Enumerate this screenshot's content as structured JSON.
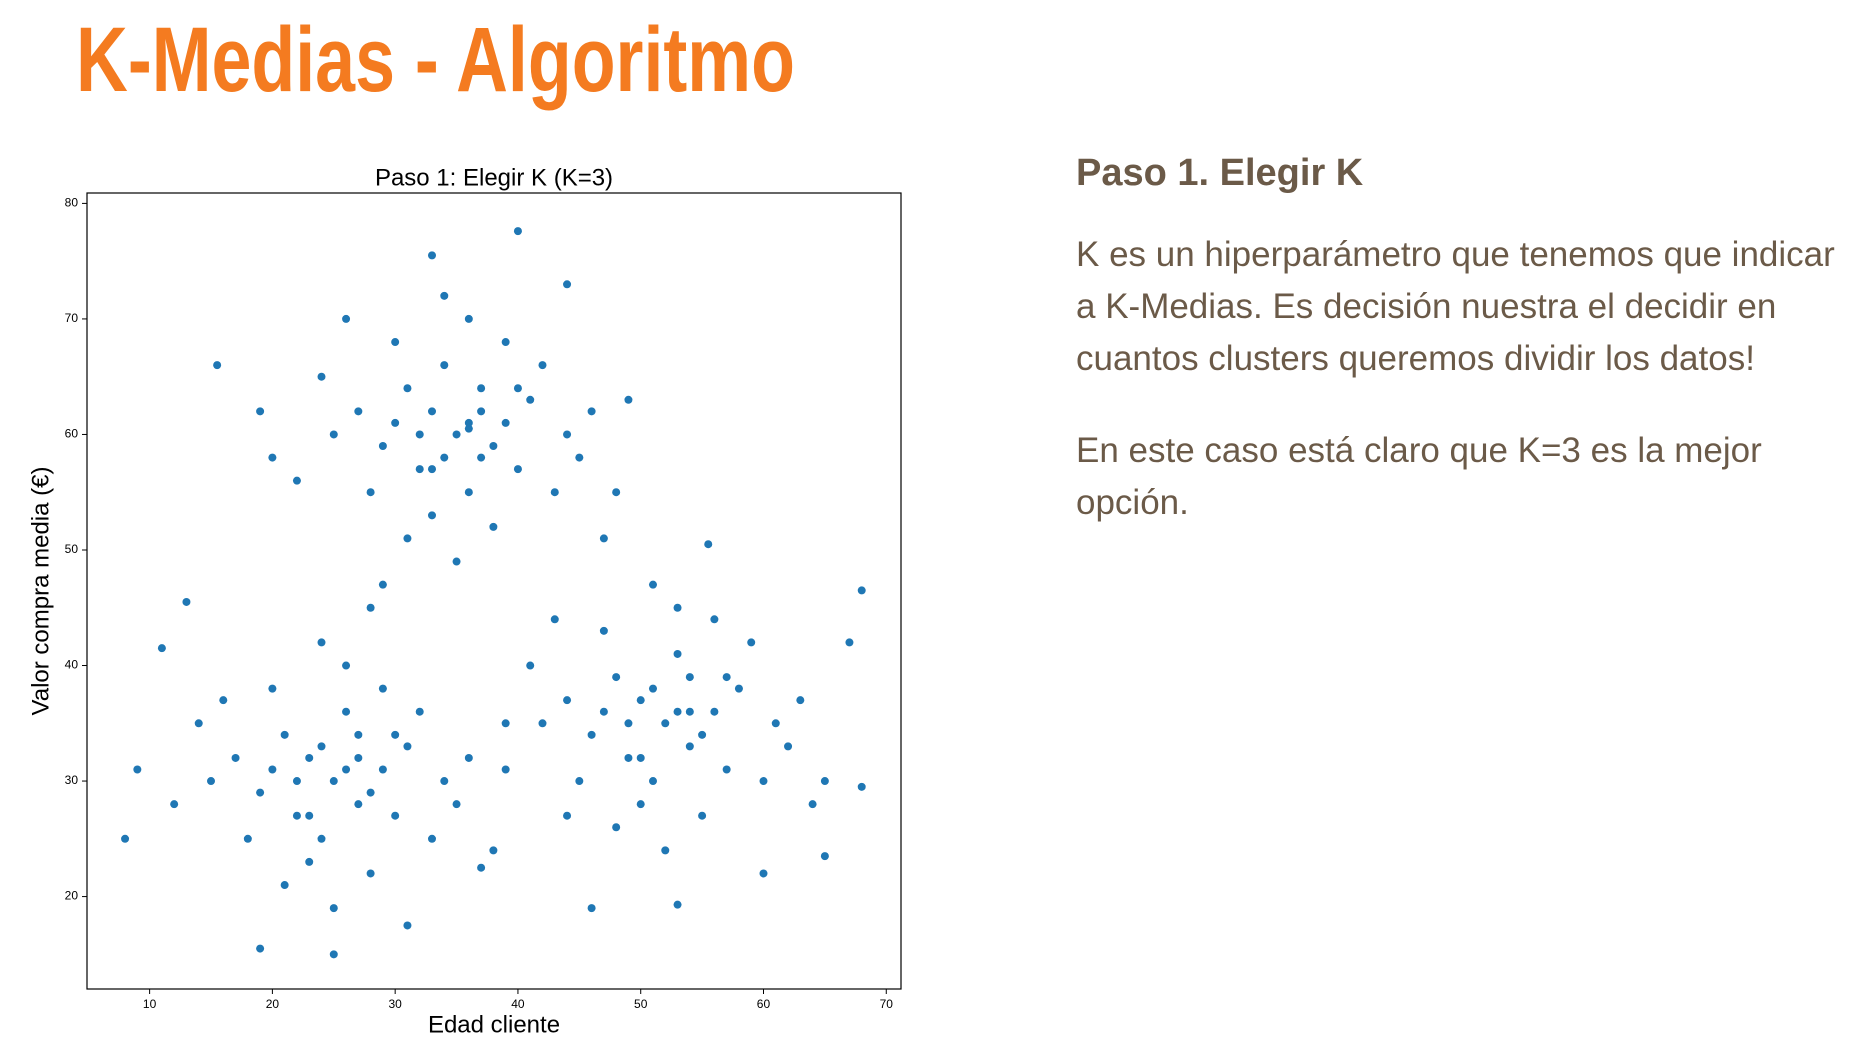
{
  "slide_title": "K-Medias - Algoritmo",
  "chart_data": {
    "type": "scatter",
    "title": "Paso 1: Elegir K (K=3)",
    "xlabel": "Edad cliente",
    "ylabel": "Valor compra media (€)",
    "color": "#1f77b4",
    "grid": false,
    "xlim": [
      4.9,
      71.2
    ],
    "ylim": [
      12,
      80.9
    ],
    "xticks": [
      10,
      20,
      30,
      40,
      50,
      60,
      70
    ],
    "yticks": [
      20,
      30,
      40,
      50,
      60,
      70,
      80
    ],
    "x": [
      35,
      33,
      37,
      31,
      39,
      36,
      34,
      29,
      41,
      38,
      32,
      30,
      40,
      44,
      27,
      36,
      33,
      42,
      28,
      37,
      35,
      46,
      25,
      31,
      39,
      34,
      43,
      24,
      36,
      32,
      38,
      34,
      37,
      30,
      40,
      33,
      26,
      45,
      22,
      48,
      15.5,
      19,
      40,
      33,
      49,
      20,
      47,
      29,
      44,
      36,
      25,
      23,
      27,
      21,
      29,
      24,
      26,
      19,
      31,
      28,
      22,
      20,
      30,
      34,
      17,
      26,
      23,
      32,
      18,
      27,
      25,
      36,
      15,
      21,
      29,
      24,
      33,
      14,
      26,
      22,
      28,
      24,
      27,
      20,
      30,
      23,
      16,
      35,
      12,
      38,
      8,
      11,
      13,
      9,
      25,
      19,
      39,
      37,
      28,
      31,
      52,
      50,
      54,
      48,
      56,
      51,
      53,
      46,
      58,
      55,
      49,
      47,
      57,
      61,
      44,
      53,
      50,
      59,
      45,
      54,
      52,
      63,
      42,
      48,
      56,
      51,
      60,
      41,
      53,
      49,
      55,
      51,
      54,
      47,
      57,
      50,
      43,
      62,
      39,
      65,
      68,
      67,
      65,
      68,
      55.5,
      46,
      53,
      60,
      44,
      64
    ],
    "values": [
      60,
      62,
      58,
      64,
      61,
      55,
      66,
      59,
      63,
      52,
      57,
      68,
      57,
      60,
      62,
      70,
      53,
      66,
      55,
      64,
      49,
      62,
      60,
      51,
      68,
      72,
      55,
      65,
      61,
      60,
      59,
      58,
      62,
      61,
      64,
      57,
      70,
      58,
      56,
      55,
      66,
      62,
      77.6,
      75.5,
      63,
      58,
      51,
      47,
      73,
      60.5,
      30,
      32,
      28,
      34,
      31,
      25,
      36,
      29,
      33,
      22,
      27,
      38,
      27,
      30,
      32,
      40,
      23,
      36,
      25,
      34,
      19,
      32,
      30,
      21,
      38,
      42,
      25,
      35,
      31,
      30,
      29,
      33,
      32,
      31,
      34,
      27,
      37,
      28,
      28,
      24,
      25,
      41.5,
      45.5,
      31,
      15,
      15.5,
      35,
      22.5,
      45,
      17.5,
      35,
      37,
      33,
      39,
      36,
      30,
      41,
      34,
      38,
      27,
      32,
      43,
      31,
      35,
      37,
      45,
      28,
      42,
      30,
      39,
      24,
      37,
      35,
      26,
      44,
      47,
      30,
      40,
      36,
      35,
      34,
      38,
      36,
      36,
      39,
      32,
      44,
      33,
      31,
      30,
      46.5,
      42,
      23.5,
      29.5,
      50.5,
      19,
      19.3,
      22,
      27,
      28
    ]
  },
  "text": {
    "heading": "Paso 1. Elegir K",
    "paragraphs": [
      "K es un hiperparámetro que tenemos que indicar a K-Medias. Es decisión nuestra el decidir en cuantos clusters queremos dividir los datos!",
      "En este caso está claro que K=3 es la mejor opción."
    ]
  }
}
